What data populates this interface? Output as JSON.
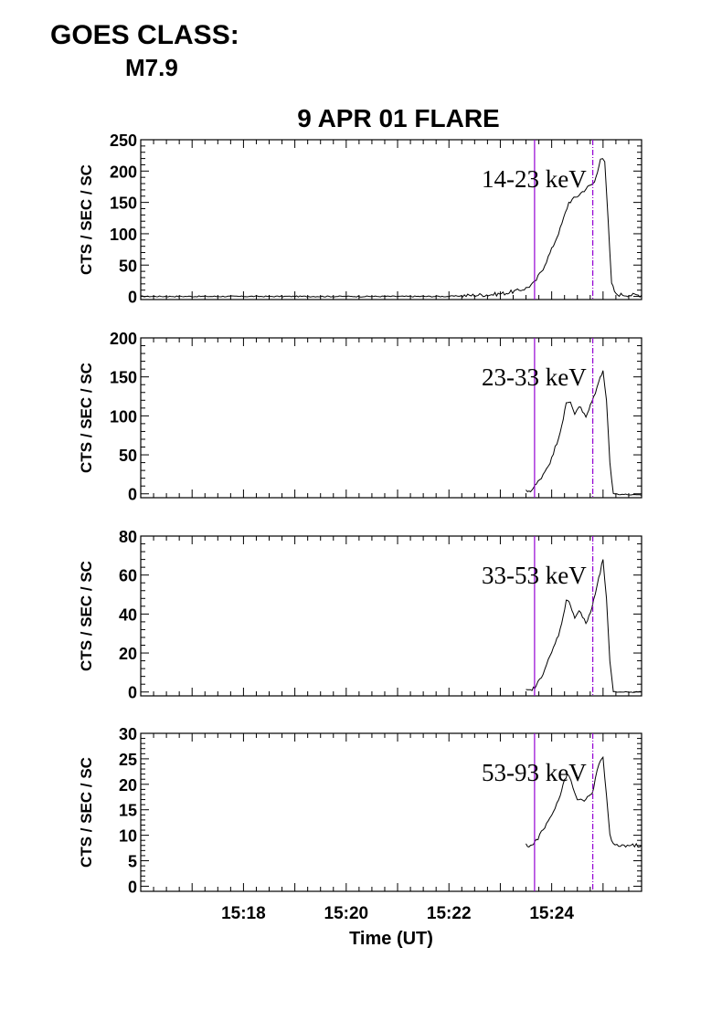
{
  "header": {
    "goes_label": "GOES CLASS:",
    "goes_value": "M7.9"
  },
  "chart_data": {
    "type": "line",
    "title": "9 APR 01 FLARE",
    "xlabel": "Time (UT)",
    "x_unit": "minutes UT",
    "xlim": [
      "15:16:00",
      "15:25:45"
    ],
    "x_ticks": [
      "15:18",
      "15:20",
      "15:22",
      "15:24"
    ],
    "marker_times": [
      "15:23:40",
      "15:24:48"
    ],
    "marker_color": "#9400d3",
    "line_color": "#000000",
    "panels": [
      {
        "label": "14-23 keV",
        "ylabel": "CTS / SEC / SC",
        "ylim": [
          -5,
          250
        ],
        "y_ticks": [
          0,
          50,
          100,
          150,
          200,
          250
        ],
        "series": {
          "x": [
            "15:16:00",
            "15:17:00",
            "15:18:00",
            "15:19:00",
            "15:20:00",
            "15:21:00",
            "15:22:00",
            "15:22:30",
            "15:22:50",
            "15:23:05",
            "15:23:20",
            "15:23:30",
            "15:23:40",
            "15:23:50",
            "15:24:00",
            "15:24:10",
            "15:24:20",
            "15:24:30",
            "15:24:40",
            "15:24:50",
            "15:24:57",
            "15:25:02",
            "15:25:06",
            "15:25:10",
            "15:25:15",
            "15:25:45"
          ],
          "y": [
            0,
            0,
            0,
            0,
            0,
            0,
            0,
            2,
            3,
            5,
            9,
            13,
            22,
            45,
            75,
            108,
            150,
            160,
            172,
            182,
            220,
            215,
            120,
            20,
            3,
            2
          ]
        }
      },
      {
        "label": "23-33 keV",
        "ylabel": "CTS / SEC / SC",
        "ylim": [
          -5,
          200
        ],
        "y_ticks": [
          0,
          50,
          100,
          150,
          200
        ],
        "series": {
          "x": [
            "15:23:30",
            "15:23:37",
            "15:23:42",
            "15:23:50",
            "15:24:00",
            "15:24:10",
            "15:24:17",
            "15:24:22",
            "15:24:27",
            "15:24:32",
            "15:24:40",
            "15:24:47",
            "15:24:55",
            "15:25:00",
            "15:25:04",
            "15:25:08",
            "15:25:12",
            "15:25:45"
          ],
          "y": [
            3,
            5,
            12,
            25,
            45,
            80,
            115,
            118,
            103,
            113,
            98,
            118,
            143,
            160,
            120,
            40,
            0,
            -2
          ]
        }
      },
      {
        "label": "33-53 keV",
        "ylabel": "CTS / SEC / SC",
        "ylim": [
          -2,
          80
        ],
        "y_ticks": [
          0,
          20,
          40,
          60,
          80
        ],
        "series": {
          "x": [
            "15:23:30",
            "15:23:37",
            "15:23:42",
            "15:23:50",
            "15:24:00",
            "15:24:10",
            "15:24:17",
            "15:24:22",
            "15:24:27",
            "15:24:32",
            "15:24:40",
            "15:24:47",
            "15:24:55",
            "15:25:00",
            "15:25:04",
            "15:25:08",
            "15:25:12",
            "15:25:45"
          ],
          "y": [
            1,
            1,
            3,
            10,
            20,
            32,
            47,
            45,
            38,
            42,
            35,
            43,
            58,
            68,
            48,
            15,
            0,
            0
          ]
        }
      },
      {
        "label": "53-93 keV",
        "ylabel": "CTS / SEC / SC",
        "ylim": [
          -1,
          30
        ],
        "y_ticks": [
          0,
          5,
          10,
          15,
          20,
          25,
          30
        ],
        "series": {
          "x": [
            "15:23:30",
            "15:23:37",
            "15:23:42",
            "15:23:50",
            "15:24:00",
            "15:24:10",
            "15:24:15",
            "15:24:20",
            "15:24:25",
            "15:24:30",
            "15:24:40",
            "15:24:47",
            "15:24:55",
            "15:25:00",
            "15:25:04",
            "15:25:08",
            "15:25:12",
            "15:25:45"
          ],
          "y": [
            8,
            8,
            9,
            11,
            14,
            18,
            21,
            22,
            19,
            17,
            17,
            18,
            24,
            25,
            18,
            10,
            8,
            8
          ]
        }
      }
    ]
  }
}
